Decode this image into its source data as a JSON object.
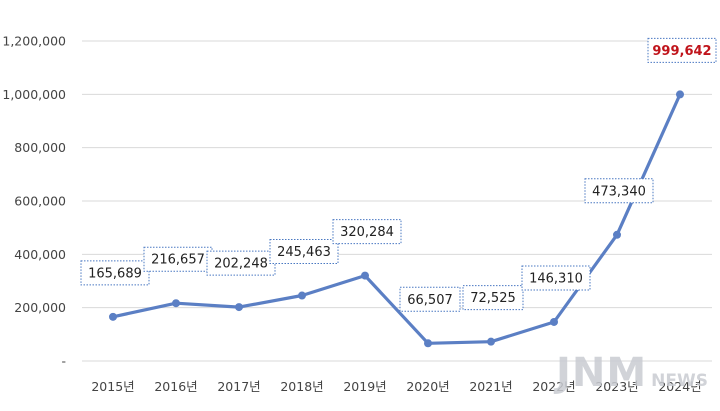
{
  "chart_data": {
    "type": "line",
    "categories": [
      "2015년",
      "2016년",
      "2017년",
      "2018년",
      "2019년",
      "2020년",
      "2021년",
      "2022년",
      "2023년",
      "2024년"
    ],
    "series": [
      {
        "values": [
          165689,
          216657,
          202248,
          245463,
          320284,
          66507,
          72525,
          146310,
          473340,
          999642
        ]
      }
    ],
    "data_labels": [
      "165,689",
      "216,657",
      "202,248",
      "245,463",
      "320,284",
      "66,507",
      "72,525",
      "146,310",
      "473,340",
      "999,642"
    ],
    "highlight_index": 9,
    "y_ticks": [
      0,
      200000,
      400000,
      600000,
      800000,
      1000000,
      1200000
    ],
    "y_tick_labels": [
      "-",
      "200,000",
      "400,000",
      "600,000",
      "800,000",
      "1,000,000",
      "1,200,000"
    ],
    "ylim": [
      0,
      1200000
    ],
    "grid": true,
    "colors": {
      "line": "#5b7fc4",
      "highlight_label": "#c0141b",
      "label_border": "#4a78c2"
    }
  },
  "watermark": {
    "main": "JNM",
    "sub": "NEWS"
  }
}
